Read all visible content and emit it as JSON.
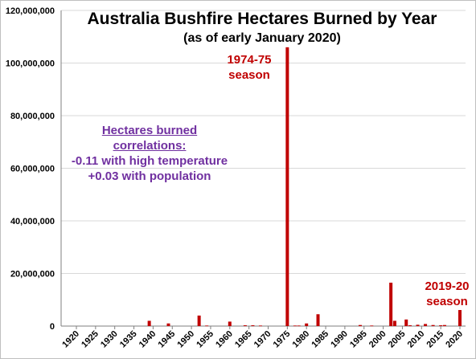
{
  "chart_data": {
    "type": "bar",
    "title": "Australia Bushfire Hectares Burned by Year",
    "subtitle": "(as of early January 2020)",
    "xlabel": "",
    "ylabel": "",
    "ylim": [
      0,
      120000000
    ],
    "yticks": [
      "0",
      "20,000,000",
      "40,000,000",
      "60,000,000",
      "80,000,000",
      "100,000,000",
      "120,000,000"
    ],
    "xticks": [
      "1920",
      "1925",
      "1930",
      "1935",
      "1940",
      "1945",
      "1950",
      "1955",
      "1960",
      "1965",
      "1970",
      "1975",
      "1980",
      "1985",
      "1990",
      "1995",
      "2000",
      "2005",
      "2010",
      "2015",
      "2020"
    ],
    "xlim": [
      1920,
      2020
    ],
    "bar_color": "#c00000",
    "grid": "horizontal",
    "series": [
      {
        "x": [
          1939,
          1944,
          1952,
          1954,
          1960,
          1964,
          1966,
          1968,
          1975,
          1977,
          1978,
          1980,
          1983,
          1994,
          1997,
          2002,
          2003,
          2006,
          2007,
          2009,
          2011,
          2013,
          2015,
          2016,
          2020
        ],
        "values": [
          2000000,
          1000000,
          4000000,
          200000,
          1700000,
          300000,
          300000,
          200000,
          106000000,
          200000,
          200000,
          1000000,
          4500000,
          400000,
          200000,
          16500000,
          2000000,
          2500000,
          300000,
          500000,
          800000,
          400000,
          300000,
          400000,
          6100000
        ]
      }
    ],
    "annotations": {
      "peak_line1": "1974-75",
      "peak_line2": "season",
      "recent_line1": "2019-20",
      "recent_line2": "season",
      "corr_title": "Hectares burned correlations:",
      "corr_line1": "-0.11 with high temperature",
      "corr_line2": "+0.03 with population"
    }
  }
}
